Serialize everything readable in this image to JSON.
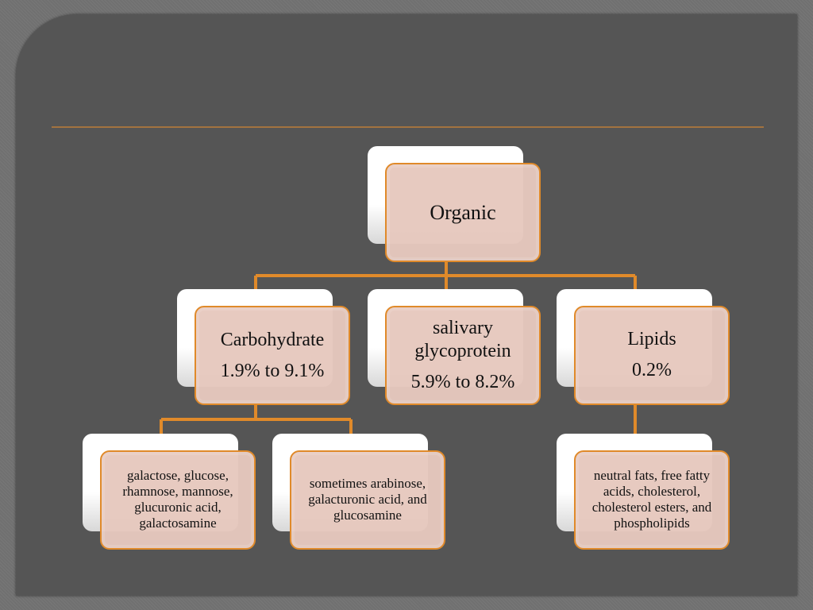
{
  "colors": {
    "accent": "#e08a2a",
    "box_fill": "#e6c8be",
    "slide_bg": "#555555",
    "rule": "#a3733f"
  },
  "root": {
    "label": "Organic"
  },
  "level2": [
    {
      "label": "Carbohydrate",
      "value": "1.9% to 9.1%"
    },
    {
      "label_line1": "salivary",
      "label_line2": "glycoprotein",
      "value": "5.9% to 8.2%"
    },
    {
      "label": "Lipids",
      "value": "0.2%"
    }
  ],
  "level3": [
    {
      "text": "galactose, glucose, rhamnose, mannose, glucuronic acid, galactosamine"
    },
    {
      "text": "sometimes arabinose, galacturonic acid, and glucosamine"
    },
    {
      "text": "neutral fats, free fatty acids, cholesterol, cholesterol esters, and phospholipids"
    }
  ]
}
